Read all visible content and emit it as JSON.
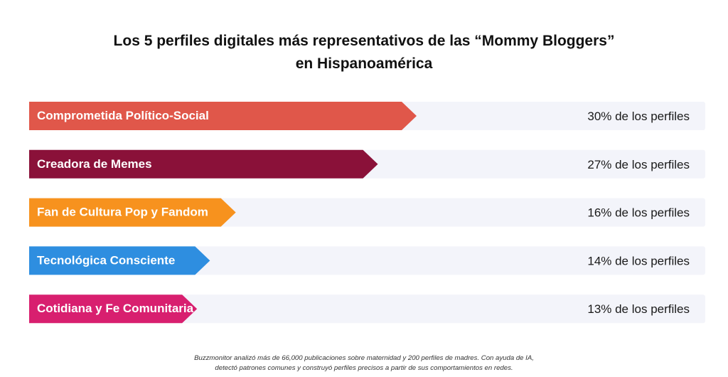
{
  "title": {
    "line1": "Los 5 perfiles digitales más representativos de las “Mommy Bloggers”",
    "line2": "en Hispanoamérica"
  },
  "chart_data": {
    "type": "bar",
    "orientation": "horizontal",
    "categories": [
      "Comprometida Político-Social",
      "Creadora de Memes",
      "Fan de Cultura Pop y Fandom",
      "Tecnológica Consciente",
      "Cotidiana y Fe Comunitaria"
    ],
    "values": [
      30,
      27,
      16,
      14,
      13
    ],
    "value_labels": [
      "30% de los perfiles",
      "27% de los perfiles",
      "16% de los perfiles",
      "14% de los perfiles",
      "13% de los perfiles"
    ],
    "colors": [
      "#e0574a",
      "#8a1139",
      "#f7921e",
      "#2e8ee0",
      "#d81f6f"
    ],
    "track_color": "#f3f4fa",
    "grid": false,
    "legend": "none"
  },
  "footnote": {
    "line1": "Buzzmonitor analizó más de 66,000 publicaciones sobre maternidad y 200 perfiles de madres. Con ayuda de IA,",
    "line2": "detectó patrones comunes y construyó perfiles precisos a partir de sus comportamientos en redes."
  }
}
